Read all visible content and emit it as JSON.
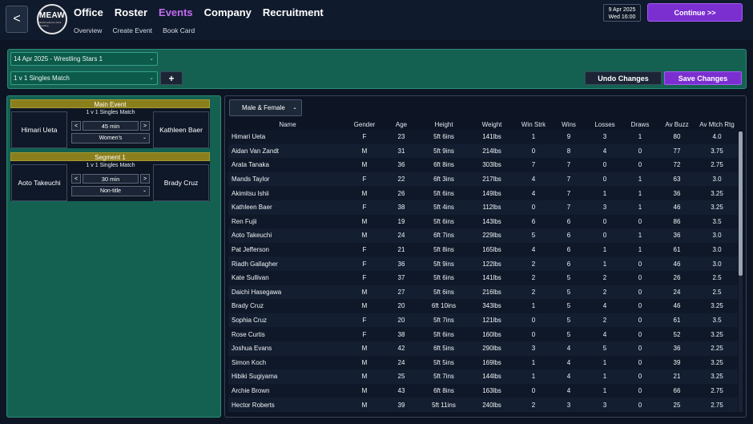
{
  "topbar": {
    "back_label": "<",
    "logo_text": "MEAW",
    "logo_subtext": "Mild Excellence Adult Wrestling",
    "nav": [
      "Office",
      "Roster",
      "Events",
      "Company",
      "Recruitment"
    ],
    "subnav": [
      "Overview",
      "Create Event",
      "Book Card"
    ],
    "date_line1": "9 Apr 2025",
    "date_line2": "Wed  16:00",
    "continue_label": "Continue >>"
  },
  "event_panel": {
    "event_select": "14 Apr 2025 - Wrestling Stars 1",
    "match_type_select": "1 v 1 Singles Match",
    "add_label": "+",
    "undo_label": "Undo Changes",
    "save_label": "Save Changes"
  },
  "card": {
    "segments": [
      {
        "header": "Main Event",
        "match_type": "1 v 1 Singles Match",
        "left": "Himari Ueta",
        "right": "Kathleen Baer",
        "duration": "45 min",
        "option": "Women's"
      },
      {
        "header": "Segment 1",
        "match_type": "1 v 1 Singles Match",
        "left": "Aoto Takeuchi",
        "right": "Brady Cruz",
        "duration": "30 min",
        "option": "Non-title"
      }
    ]
  },
  "roster": {
    "filter": "Male & Female",
    "columns": [
      "Name",
      "Gender",
      "Age",
      "Height",
      "Weight",
      "Win Strk",
      "Wins",
      "Losses",
      "Draws",
      "Av Buzz",
      "Av Mtch Rtg"
    ],
    "rows": [
      [
        "Himari Ueta",
        "F",
        "23",
        "5ft 6ins",
        "141lbs",
        "1",
        "9",
        "3",
        "1",
        "80",
        "4.0"
      ],
      [
        "Aidan Van Zandt",
        "M",
        "31",
        "5ft 9ins",
        "214lbs",
        "0",
        "8",
        "4",
        "0",
        "77",
        "3.75"
      ],
      [
        "Arata Tanaka",
        "M",
        "36",
        "6ft 8ins",
        "303lbs",
        "7",
        "7",
        "0",
        "0",
        "72",
        "2.75"
      ],
      [
        "Mands Taylor",
        "F",
        "22",
        "6ft 3ins",
        "217lbs",
        "4",
        "7",
        "0",
        "1",
        "63",
        "3.0"
      ],
      [
        "Akimitsu Ishii",
        "M",
        "26",
        "5ft 6ins",
        "149lbs",
        "4",
        "7",
        "1",
        "1",
        "36",
        "3.25"
      ],
      [
        "Kathleen Baer",
        "F",
        "38",
        "5ft 4ins",
        "112lbs",
        "0",
        "7",
        "3",
        "1",
        "46",
        "3.25"
      ],
      [
        "Ren Fujii",
        "M",
        "19",
        "5ft 6ins",
        "143lbs",
        "6",
        "6",
        "0",
        "0",
        "86",
        "3.5"
      ],
      [
        "Aoto Takeuchi",
        "M",
        "24",
        "6ft 7ins",
        "229lbs",
        "5",
        "6",
        "0",
        "1",
        "36",
        "3.0"
      ],
      [
        "Pat Jefferson",
        "F",
        "21",
        "5ft 8ins",
        "165lbs",
        "4",
        "6",
        "1",
        "1",
        "61",
        "3.0"
      ],
      [
        "Riadh Gallagher",
        "F",
        "36",
        "5ft 9ins",
        "122lbs",
        "2",
        "6",
        "1",
        "0",
        "46",
        "3.0"
      ],
      [
        "Kate Sullivan",
        "F",
        "37",
        "5ft 6ins",
        "141lbs",
        "2",
        "5",
        "2",
        "0",
        "26",
        "2.5"
      ],
      [
        "Daichi Hasegawa",
        "M",
        "27",
        "5ft 6ins",
        "216lbs",
        "2",
        "5",
        "2",
        "0",
        "24",
        "2.5"
      ],
      [
        "Brady Cruz",
        "M",
        "20",
        "6ft 10ins",
        "343lbs",
        "1",
        "5",
        "4",
        "0",
        "46",
        "3.25"
      ],
      [
        "Sophia Cruz",
        "F",
        "20",
        "5ft 7ins",
        "121lbs",
        "0",
        "5",
        "2",
        "0",
        "61",
        "3.5"
      ],
      [
        "Rose Curtis",
        "F",
        "38",
        "5ft 6ins",
        "160lbs",
        "0",
        "5",
        "4",
        "0",
        "52",
        "3.25"
      ],
      [
        "Joshua Evans",
        "M",
        "42",
        "6ft 5ins",
        "290lbs",
        "3",
        "4",
        "5",
        "0",
        "36",
        "2.25"
      ],
      [
        "Simon Koch",
        "M",
        "24",
        "5ft 5ins",
        "169lbs",
        "1",
        "4",
        "1",
        "0",
        "39",
        "3.25"
      ],
      [
        "Hibiki Sugiyama",
        "M",
        "25",
        "5ft 7ins",
        "144lbs",
        "1",
        "4",
        "1",
        "0",
        "21",
        "3.25"
      ],
      [
        "Archie Brown",
        "M",
        "43",
        "6ft 8ins",
        "163lbs",
        "0",
        "4",
        "1",
        "0",
        "66",
        "2.75"
      ],
      [
        "Hector Roberts",
        "M",
        "39",
        "5ft 11ins",
        "240lbs",
        "2",
        "3",
        "3",
        "0",
        "25",
        "2.75"
      ]
    ]
  }
}
